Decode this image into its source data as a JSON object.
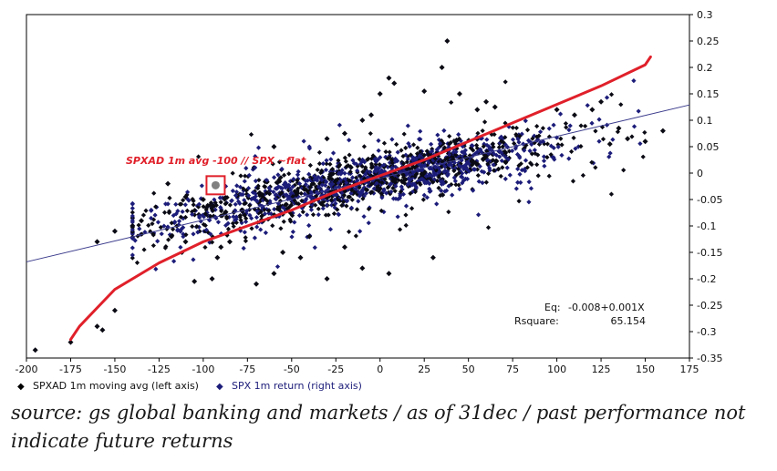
{
  "chart_data": {
    "type": "scatter",
    "x_axis": {
      "min": -200,
      "max": 175,
      "ticks": [
        -200,
        -175,
        -150,
        -125,
        -100,
        -75,
        -50,
        -25,
        0,
        25,
        50,
        75,
        100,
        125,
        150,
        175
      ]
    },
    "y_axis_right": {
      "min": -0.35,
      "max": 0.3,
      "ticks": [
        "0.3",
        "0.25",
        "0.2",
        "0.15",
        "0.1",
        "0.05",
        "0",
        "-0.05",
        "-0.1",
        "-0.15",
        "-0.2",
        "-0.25",
        "-0.3",
        "-0.35"
      ]
    },
    "grid": false,
    "legend_position": "bottom-left",
    "series": [
      {
        "name": "SPXAD 1m moving avg (left axis)",
        "color": "#000000",
        "marker": "diamond"
      },
      {
        "name": "SPX 1m return (right axis)",
        "color": "#1c1c7a",
        "marker": "diamond"
      }
    ],
    "sample_points": [
      [
        -195,
        -0.335
      ],
      [
        -175,
        -0.32
      ],
      [
        -160,
        -0.29
      ],
      [
        -157,
        -0.297
      ],
      [
        -150,
        -0.26
      ],
      [
        -160,
        -0.13
      ],
      [
        -150,
        -0.11
      ],
      [
        -140,
        -0.1
      ],
      [
        -135,
        -0.09
      ],
      [
        -118,
        -0.12
      ],
      [
        -110,
        -0.13
      ],
      [
        -105,
        -0.205
      ],
      [
        -95,
        -0.2
      ],
      [
        -92,
        -0.16
      ],
      [
        -90,
        -0.14
      ],
      [
        -85,
        -0.13
      ],
      [
        -70,
        -0.21
      ],
      [
        -60,
        -0.19
      ],
      [
        -55,
        -0.15
      ],
      [
        -45,
        -0.16
      ],
      [
        -40,
        -0.12
      ],
      [
        -30,
        -0.2
      ],
      [
        -20,
        -0.14
      ],
      [
        -10,
        -0.18
      ],
      [
        5,
        -0.19
      ],
      [
        30,
        -0.16
      ],
      [
        38,
        0.25
      ],
      [
        35,
        0.2
      ],
      [
        5,
        0.18
      ],
      [
        8,
        0.17
      ],
      [
        0,
        0.15
      ],
      [
        25,
        0.155
      ],
      [
        45,
        0.15
      ],
      [
        55,
        0.12
      ],
      [
        60,
        0.135
      ],
      [
        65,
        0.125
      ],
      [
        -5,
        0.11
      ],
      [
        -10,
        0.1
      ],
      [
        -20,
        0.075
      ],
      [
        -30,
        0.065
      ],
      [
        100,
        0.12
      ],
      [
        110,
        0.11
      ],
      [
        120,
        0.12
      ],
      [
        125,
        0.135
      ],
      [
        135,
        0.085
      ],
      [
        150,
        0.06
      ],
      [
        160,
        0.08
      ],
      [
        130,
        0.055
      ],
      [
        140,
        0.065
      ],
      [
        -60,
        0.05
      ],
      [
        -120,
        -0.02
      ],
      [
        -100,
        -0.05
      ],
      [
        -110,
        -0.045
      ]
    ],
    "trend_line": {
      "x": [
        -200,
        175
      ],
      "y": [
        -0.168,
        0.129
      ]
    },
    "fit_curve_points": [
      [
        -175,
        -0.315
      ],
      [
        -170,
        -0.29
      ],
      [
        -160,
        -0.255
      ],
      [
        -150,
        -0.22
      ],
      [
        -125,
        -0.17
      ],
      [
        -100,
        -0.13
      ],
      [
        -75,
        -0.1
      ],
      [
        -50,
        -0.07
      ],
      [
        -25,
        -0.035
      ],
      [
        0,
        -0.005
      ],
      [
        25,
        0.025
      ],
      [
        50,
        0.06
      ],
      [
        75,
        0.095
      ],
      [
        100,
        0.13
      ],
      [
        125,
        0.165
      ],
      [
        150,
        0.205
      ],
      [
        153,
        0.22
      ]
    ],
    "highlight_point": {
      "x": -93,
      "y": -0.023
    },
    "annotation": "SPXAD 1m avg -100 // SPX ~flat",
    "equation": {
      "eq_label": "Eq:",
      "eq_value": "-0.008+0.001X",
      "r_label": "Rsquare:",
      "r_value": "65.154"
    },
    "colors": {
      "dots_dark": "#0a0a14",
      "dots_navy": "#1c1c7a",
      "fit_red": "#e0202a",
      "trend_blue": "#3a3a8c"
    }
  },
  "caption": "source: gs global banking and markets / as of 31dec / past performance not indicate future returns"
}
